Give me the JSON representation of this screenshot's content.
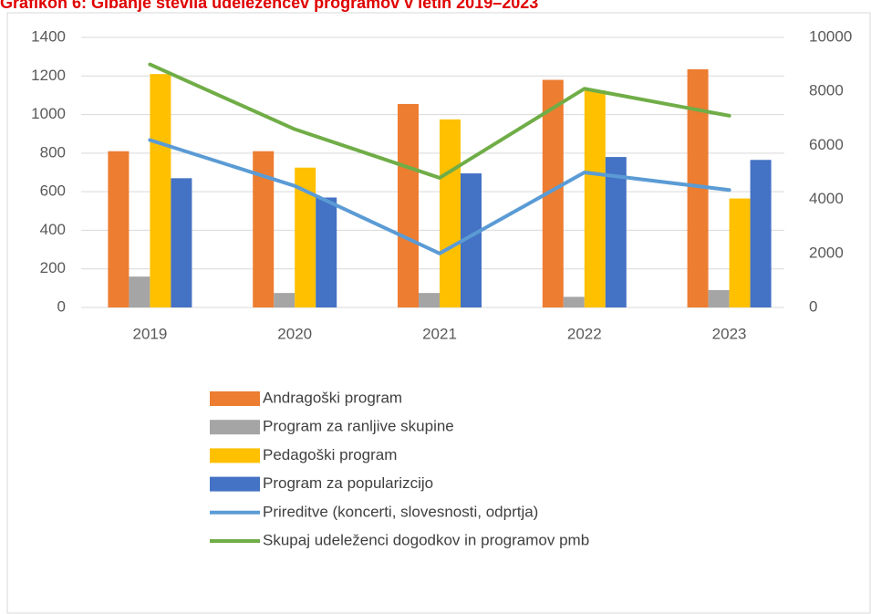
{
  "chart_data": {
    "type": "combo",
    "title": "Grafikon 6: Gibanje števila udeležencev programov v letih 2019–2023",
    "categories": [
      "2019",
      "2020",
      "2021",
      "2022",
      "2023"
    ],
    "ylim": [
      0,
      1400
    ],
    "yticks": [
      0,
      200,
      400,
      600,
      800,
      1000,
      1200,
      1400
    ],
    "y2lim": [
      0,
      10000
    ],
    "y2ticks": [
      0,
      2000,
      4000,
      6000,
      8000,
      10000
    ],
    "grid": true,
    "legend": "bottom",
    "series": [
      {
        "name": "Andragoški program",
        "type": "bar",
        "color": "#ed7d31",
        "values": [
          810,
          810,
          1055,
          1180,
          1235
        ]
      },
      {
        "name": "Program za ranljive skupine",
        "type": "bar",
        "color": "#a5a5a5",
        "values": [
          160,
          75,
          75,
          55,
          90
        ]
      },
      {
        "name": "Pedagoški program",
        "type": "bar",
        "color": "#ffc000",
        "values": [
          1210,
          725,
          975,
          1125,
          565
        ]
      },
      {
        "name": "Program za popularizcijo",
        "type": "bar",
        "color": "#4472c4",
        "values": [
          670,
          570,
          695,
          780,
          765
        ]
      },
      {
        "name": "Prireditve (koncerti, slovesnosti, odprtja)",
        "type": "line",
        "axis": "y2",
        "color": "#5b9bd5",
        "values": [
          6200,
          4500,
          2000,
          5000,
          4350
        ]
      },
      {
        "name": "Skupaj udeleženci dogodkov in programov pmb",
        "type": "line",
        "axis": "y2",
        "color": "#70ad47",
        "values": [
          9000,
          6600,
          4800,
          8100,
          7100
        ]
      }
    ]
  }
}
